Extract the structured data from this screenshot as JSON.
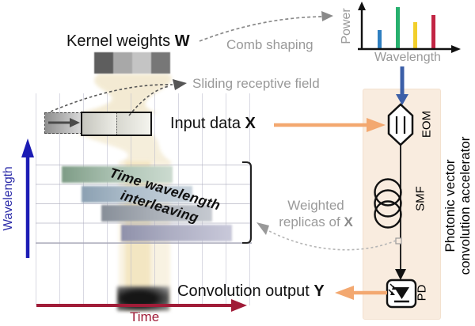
{
  "diagram": {
    "kernel": {
      "label": "Kernel weights",
      "symbol": "W",
      "shades": [
        "#5e5e5e",
        "#a8a8a8",
        "#c4c4c4",
        "#777777"
      ]
    },
    "comb_shaping_label": "Comb shaping",
    "sliding_label": "Sliding receptive field",
    "input": {
      "label": "Input data",
      "symbol": "X"
    },
    "interleaving": {
      "line1": "Time wavelength",
      "line2": "interleaving",
      "rows": [
        {
          "colors": [
            "#7e9c86",
            "#a9c0b0",
            "#ccdbd0"
          ]
        },
        {
          "colors": [
            "#8ba0b2",
            "#aebecb",
            "#c9d3dc"
          ]
        },
        {
          "colors": [
            "#878e98",
            "#a8aeb6",
            "#c6cad1"
          ]
        },
        {
          "colors": [
            "#8f91aa",
            "#adaec3",
            "#c9c9da"
          ]
        }
      ]
    },
    "weighted": {
      "line1": "Weighted",
      "line2": "replicas of",
      "symbol": "X"
    },
    "output": {
      "label": "Convolution output",
      "symbol": "Y"
    },
    "axes": {
      "wavelength": "Wavelength",
      "time": "Time"
    },
    "accelerator": {
      "title_line1": "Photonic vector",
      "title_line2": "convolution accelerator",
      "components": {
        "eom": "EOM",
        "smf": "SMF",
        "pd": "PD"
      },
      "panel_color": "#f9ecdf"
    }
  },
  "chart_data": {
    "type": "bar",
    "xlabel": "Wavelength",
    "ylabel": "Power",
    "ylim": [
      0,
      1
    ],
    "grid": false,
    "bars": [
      {
        "color": "#2f7fc0",
        "value": 0.42
      },
      {
        "color": "#27b06e",
        "value": 0.93
      },
      {
        "color": "#f2cf2b",
        "value": 0.6
      },
      {
        "color": "#c22544",
        "value": 0.75
      }
    ]
  },
  "colors": {
    "comb_arrow_blue": "#3c5fa8",
    "wavelength_axis_blue": "#1c1cb4",
    "time_axis_red": "#a01c38",
    "orange_arrow": "#f3a870",
    "gray_annotation": "#999999",
    "panel_peach": "#f9ecdf"
  }
}
